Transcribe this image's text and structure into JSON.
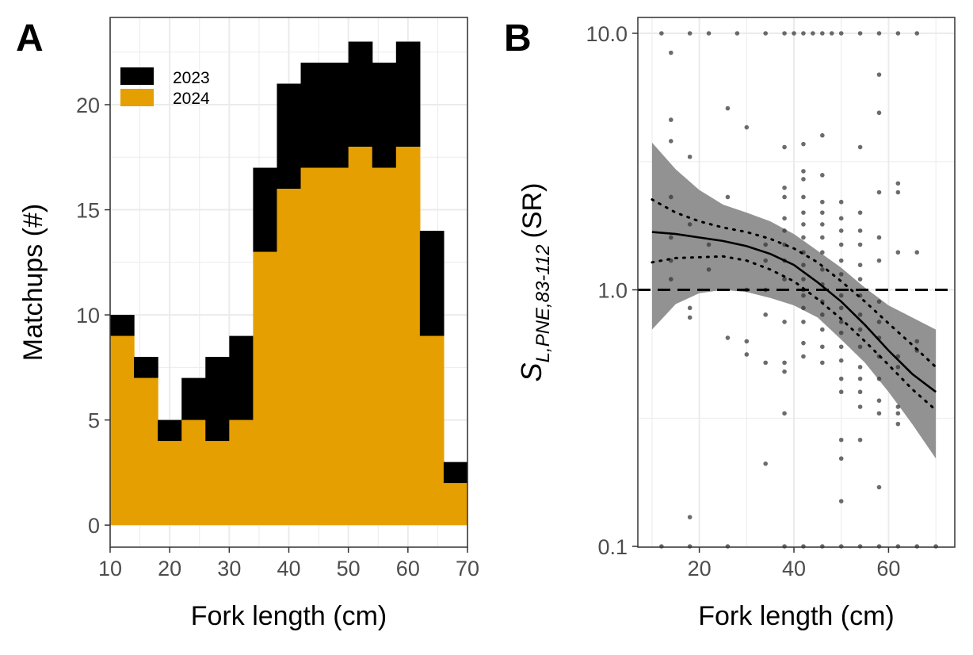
{
  "panels": {
    "a_label": "A",
    "b_label": "B"
  },
  "colors": {
    "y2023": "#000000",
    "y2024": "#E69F00",
    "ribbon": "#8c8c8c",
    "points": "#333333",
    "grid": "#ebebeb"
  },
  "chart_data": [
    {
      "type": "bar",
      "stacked": true,
      "bin_edges": [
        10,
        14,
        18,
        22,
        26,
        30,
        34,
        38,
        42,
        46,
        50,
        54,
        58,
        62,
        66,
        70
      ],
      "series": [
        {
          "name": "2024",
          "values": [
            9,
            7,
            4,
            5,
            4,
            5,
            13,
            16,
            17,
            17,
            18,
            17,
            18,
            9,
            2
          ]
        },
        {
          "name": "2023",
          "values": [
            1,
            1,
            1,
            2,
            4,
            4,
            4,
            5,
            5,
            5,
            5,
            5,
            5,
            5,
            1
          ]
        }
      ],
      "xlabel": "Fork length (cm)",
      "ylabel": "Matchups (#)",
      "xlim": [
        10,
        70
      ],
      "ylim": [
        0,
        24
      ],
      "x_ticks": [
        "10",
        "20",
        "30",
        "40",
        "50",
        "60",
        "70"
      ],
      "y_ticks": [
        "0",
        "5",
        "10",
        "15",
        "20"
      ],
      "legend": [
        "2023",
        "2024"
      ],
      "legend_position": "top-left",
      "grid": true
    },
    {
      "type": "scatter",
      "y_scale": "log",
      "xlabel": "Fork length (cm)",
      "ylabel": "S_L,PNE,83-112 (SR)",
      "ylabel_parts": {
        "main": "S",
        "sub": "L,PNE,83-112",
        "unit": "(SR)"
      },
      "xlim": [
        7,
        74
      ],
      "ylim": [
        0.1,
        10
      ],
      "x_ticks": [
        "20",
        "40",
        "60"
      ],
      "y_ticks": [
        "0.1",
        "1.0",
        "10.0"
      ],
      "reference_line_y": 1.0,
      "grid": true,
      "points": [
        [
          12,
          0.1
        ],
        [
          18,
          0.1
        ],
        [
          26,
          0.1
        ],
        [
          38,
          0.1
        ],
        [
          42,
          0.1
        ],
        [
          46,
          0.1
        ],
        [
          50,
          0.1
        ],
        [
          54,
          0.1
        ],
        [
          58,
          0.1
        ],
        [
          62,
          0.1
        ],
        [
          66,
          0.1
        ],
        [
          70,
          0.1
        ],
        [
          12,
          10
        ],
        [
          18,
          10
        ],
        [
          22,
          10
        ],
        [
          28,
          10
        ],
        [
          34,
          10
        ],
        [
          38,
          10
        ],
        [
          40,
          10
        ],
        [
          42,
          10
        ],
        [
          44,
          10
        ],
        [
          46,
          10
        ],
        [
          48,
          10
        ],
        [
          50,
          10
        ],
        [
          54,
          10
        ],
        [
          58,
          10
        ],
        [
          62,
          10
        ],
        [
          66,
          10
        ],
        [
          14,
          8.4
        ],
        [
          14,
          4.6
        ],
        [
          14,
          3.8
        ],
        [
          18,
          3.3
        ],
        [
          26,
          5.1
        ],
        [
          30,
          4.3
        ],
        [
          38,
          3.6
        ],
        [
          42,
          3.7
        ],
        [
          46,
          4.0
        ],
        [
          54,
          3.6
        ],
        [
          58,
          6.9
        ],
        [
          58,
          4.9
        ],
        [
          14,
          2.3
        ],
        [
          14,
          1.6
        ],
        [
          14,
          1.3
        ],
        [
          14,
          1.1
        ],
        [
          18,
          1.8
        ],
        [
          22,
          1.5
        ],
        [
          26,
          2.3
        ],
        [
          22,
          1.2
        ],
        [
          30,
          1.0
        ],
        [
          34,
          1.5
        ],
        [
          34,
          1.3
        ],
        [
          34,
          1.0
        ],
        [
          38,
          2.5
        ],
        [
          38,
          2.3
        ],
        [
          38,
          1.9
        ],
        [
          38,
          1.7
        ],
        [
          38,
          1.5
        ],
        [
          38,
          1.3
        ],
        [
          38,
          1.1
        ],
        [
          42,
          2.9
        ],
        [
          42,
          2.7
        ],
        [
          42,
          2.3
        ],
        [
          42,
          2.0
        ],
        [
          42,
          1.8
        ],
        [
          42,
          1.6
        ],
        [
          42,
          1.4
        ],
        [
          42,
          1.25
        ],
        [
          42,
          1.1
        ],
        [
          42,
          1.0
        ],
        [
          46,
          2.8
        ],
        [
          46,
          2.2
        ],
        [
          46,
          2.0
        ],
        [
          46,
          1.8
        ],
        [
          46,
          1.6
        ],
        [
          46,
          1.4
        ],
        [
          46,
          1.2
        ],
        [
          46,
          1.05
        ],
        [
          50,
          2.2
        ],
        [
          50,
          1.9
        ],
        [
          50,
          1.7
        ],
        [
          50,
          1.5
        ],
        [
          50,
          1.3
        ],
        [
          50,
          1.15
        ],
        [
          54,
          2.0
        ],
        [
          54,
          1.7
        ],
        [
          54,
          1.5
        ],
        [
          54,
          1.25
        ],
        [
          54,
          1.1
        ],
        [
          58,
          2.4
        ],
        [
          58,
          1.6
        ],
        [
          58,
          1.3
        ],
        [
          62,
          2.6
        ],
        [
          62,
          2.4
        ],
        [
          62,
          1.4
        ],
        [
          66,
          1.4
        ],
        [
          18,
          0.85
        ],
        [
          18,
          0.78
        ],
        [
          26,
          0.65
        ],
        [
          30,
          0.63
        ],
        [
          30,
          0.56
        ],
        [
          34,
          0.8
        ],
        [
          34,
          0.52
        ],
        [
          38,
          0.75
        ],
        [
          38,
          0.52
        ],
        [
          38,
          0.48
        ],
        [
          38,
          0.33
        ],
        [
          34,
          0.21
        ],
        [
          42,
          0.95
        ],
        [
          42,
          0.85
        ],
        [
          42,
          0.75
        ],
        [
          42,
          0.62
        ],
        [
          42,
          0.55
        ],
        [
          46,
          0.9
        ],
        [
          46,
          0.8
        ],
        [
          46,
          0.7
        ],
        [
          46,
          0.6
        ],
        [
          46,
          0.52
        ],
        [
          50,
          0.95
        ],
        [
          50,
          0.85
        ],
        [
          50,
          0.75
        ],
        [
          50,
          0.68
        ],
        [
          50,
          0.6
        ],
        [
          50,
          0.53
        ],
        [
          50,
          0.45
        ],
        [
          50,
          0.4
        ],
        [
          50,
          0.26
        ],
        [
          50,
          0.22
        ],
        [
          50,
          0.15
        ],
        [
          54,
          0.95
        ],
        [
          54,
          0.8
        ],
        [
          54,
          0.7
        ],
        [
          54,
          0.6
        ],
        [
          54,
          0.5
        ],
        [
          54,
          0.45
        ],
        [
          54,
          0.4
        ],
        [
          54,
          0.35
        ],
        [
          54,
          0.26
        ],
        [
          58,
          0.9
        ],
        [
          58,
          0.75
        ],
        [
          58,
          0.65
        ],
        [
          58,
          0.55
        ],
        [
          58,
          0.45
        ],
        [
          58,
          0.37
        ],
        [
          58,
          0.33
        ],
        [
          58,
          0.17
        ],
        [
          62,
          0.55
        ],
        [
          62,
          0.5
        ],
        [
          62,
          0.35
        ],
        [
          62,
          0.33
        ],
        [
          62,
          0.3
        ],
        [
          66,
          0.63
        ],
        [
          66,
          0.58
        ],
        [
          18,
          0.13
        ]
      ],
      "fit_line": [
        [
          10,
          1.68
        ],
        [
          15,
          1.65
        ],
        [
          20,
          1.6
        ],
        [
          25,
          1.55
        ],
        [
          30,
          1.48
        ],
        [
          35,
          1.38
        ],
        [
          40,
          1.25
        ],
        [
          45,
          1.07
        ],
        [
          50,
          0.9
        ],
        [
          55,
          0.73
        ],
        [
          60,
          0.58
        ],
        [
          65,
          0.47
        ],
        [
          70,
          0.4
        ]
      ],
      "fit_ci": {
        "x": [
          10,
          15,
          20,
          25,
          30,
          35,
          40,
          45,
          50,
          55,
          60,
          65,
          70
        ],
        "upper": [
          3.75,
          2.95,
          2.45,
          2.15,
          2.0,
          1.85,
          1.65,
          1.42,
          1.22,
          1.02,
          0.87,
          0.78,
          0.7
        ],
        "lower": [
          0.7,
          0.88,
          0.97,
          1.0,
          0.98,
          0.93,
          0.87,
          0.78,
          0.64,
          0.52,
          0.4,
          0.3,
          0.22
        ]
      },
      "dotted_upper": [
        [
          10,
          2.25
        ],
        [
          15,
          2.0
        ],
        [
          20,
          1.85
        ],
        [
          25,
          1.75
        ],
        [
          30,
          1.68
        ],
        [
          35,
          1.58
        ],
        [
          40,
          1.45
        ],
        [
          45,
          1.28
        ],
        [
          50,
          1.08
        ],
        [
          55,
          0.9
        ],
        [
          60,
          0.74
        ],
        [
          65,
          0.61
        ],
        [
          70,
          0.5
        ]
      ],
      "dotted_lower": [
        [
          10,
          1.28
        ],
        [
          15,
          1.33
        ],
        [
          20,
          1.34
        ],
        [
          25,
          1.35
        ],
        [
          30,
          1.3
        ],
        [
          35,
          1.2
        ],
        [
          40,
          1.08
        ],
        [
          45,
          0.92
        ],
        [
          50,
          0.77
        ],
        [
          55,
          0.63
        ],
        [
          60,
          0.51
        ],
        [
          65,
          0.41
        ],
        [
          70,
          0.34
        ]
      ]
    }
  ]
}
